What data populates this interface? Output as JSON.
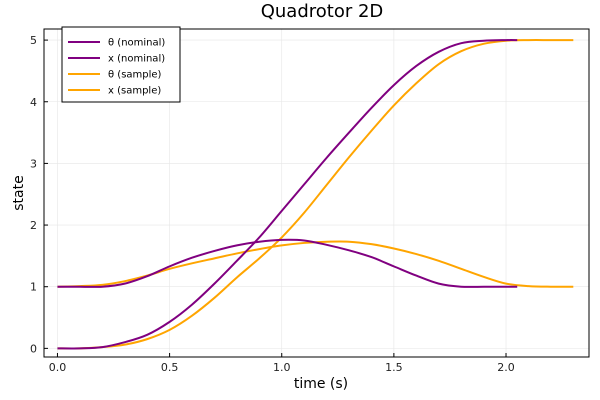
{
  "chart_data": {
    "type": "line",
    "title": "Quadrotor 2D",
    "xlabel": "time (s)",
    "ylabel": "state",
    "xlim": [
      -0.06,
      2.37
    ],
    "ylim": [
      -0.14,
      5.18
    ],
    "xticks": [
      0.0,
      0.5,
      1.0,
      1.5,
      2.0
    ],
    "xtick_labels": [
      "0.0",
      "0.5",
      "1.0",
      "1.5",
      "2.0"
    ],
    "yticks": [
      0,
      1,
      2,
      3,
      4,
      5
    ],
    "ytick_labels": [
      "0",
      "1",
      "2",
      "3",
      "4",
      "5"
    ],
    "grid": true,
    "legend_position": "top-left",
    "series": [
      {
        "name": "θ (nominal)",
        "color": "#800080",
        "x": [
          0.0,
          0.1,
          0.2,
          0.3,
          0.4,
          0.5,
          0.6,
          0.7,
          0.8,
          0.9,
          1.0,
          1.1,
          1.2,
          1.3,
          1.4,
          1.5,
          1.6,
          1.7,
          1.8,
          1.9,
          2.05
        ],
        "y": [
          1.0,
          1.0,
          1.0,
          1.05,
          1.17,
          1.33,
          1.47,
          1.58,
          1.67,
          1.73,
          1.76,
          1.75,
          1.68,
          1.59,
          1.48,
          1.33,
          1.18,
          1.05,
          1.0,
          1.0,
          1.0
        ]
      },
      {
        "name": "x (nominal)",
        "color": "#800080",
        "x": [
          0.0,
          0.1,
          0.2,
          0.3,
          0.4,
          0.5,
          0.6,
          0.7,
          0.8,
          0.9,
          1.0,
          1.1,
          1.2,
          1.3,
          1.4,
          1.5,
          1.6,
          1.7,
          1.8,
          1.9,
          2.0,
          2.05
        ],
        "y": [
          0.0,
          0.0,
          0.02,
          0.1,
          0.22,
          0.43,
          0.71,
          1.05,
          1.42,
          1.8,
          2.23,
          2.66,
          3.09,
          3.5,
          3.9,
          4.27,
          4.58,
          4.81,
          4.95,
          4.99,
          5.0,
          5.0
        ]
      },
      {
        "name": "θ (sample)",
        "color": "#FFA500",
        "x": [
          0.0,
          0.1,
          0.2,
          0.3,
          0.4,
          0.5,
          0.6,
          0.7,
          0.8,
          0.9,
          1.0,
          1.1,
          1.2,
          1.3,
          1.4,
          1.5,
          1.6,
          1.7,
          1.8,
          1.9,
          2.0,
          2.1,
          2.2,
          2.3
        ],
        "y": [
          1.0,
          1.01,
          1.03,
          1.09,
          1.18,
          1.29,
          1.38,
          1.46,
          1.54,
          1.61,
          1.67,
          1.71,
          1.73,
          1.73,
          1.69,
          1.62,
          1.53,
          1.42,
          1.29,
          1.16,
          1.05,
          1.01,
          1.0,
          1.0
        ]
      },
      {
        "name": "x (sample)",
        "color": "#FFA500",
        "x": [
          0.0,
          0.1,
          0.2,
          0.3,
          0.4,
          0.5,
          0.6,
          0.7,
          0.8,
          0.9,
          1.0,
          1.1,
          1.2,
          1.3,
          1.4,
          1.5,
          1.6,
          1.7,
          1.8,
          1.9,
          2.0,
          2.1,
          2.2,
          2.3
        ],
        "y": [
          0.0,
          0.0,
          0.02,
          0.06,
          0.15,
          0.3,
          0.53,
          0.82,
          1.15,
          1.46,
          1.8,
          2.2,
          2.65,
          3.1,
          3.53,
          3.94,
          4.3,
          4.61,
          4.82,
          4.94,
          4.99,
          5.0,
          5.0,
          5.0
        ]
      }
    ]
  }
}
